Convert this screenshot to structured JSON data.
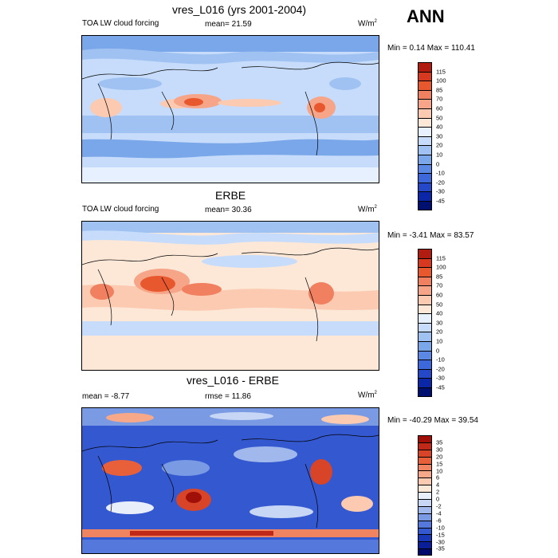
{
  "season": "ANN",
  "panels": [
    {
      "title": "vres_L016 (yrs 2001-2004)",
      "left_label": "TOA LW cloud forcing",
      "center_label": "mean=  21.59",
      "unit_base": "W/m",
      "unit_exp": "2",
      "minmax": "Min =   0.14 Max = 110.41",
      "ticks": [
        "115",
        "100",
        "85",
        "70",
        "60",
        "50",
        "40",
        "30",
        "20",
        "10",
        "0",
        "-10",
        "-20",
        "-30",
        "-45"
      ],
      "colors": [
        "#b01c10",
        "#d63820",
        "#e8582e",
        "#f08060",
        "#f6a588",
        "#fbcab0",
        "#fde8d8",
        "#e6f0ff",
        "#c6dcfa",
        "#a0c2f2",
        "#7aa6ea",
        "#5a88e4",
        "#3c68dc",
        "#2448c8",
        "#0c26a8",
        "#001070"
      ]
    },
    {
      "title": "ERBE",
      "left_label": "TOA LW cloud forcing",
      "center_label": "mean=  30.36",
      "unit_base": "W/m",
      "unit_exp": "2",
      "minmax": "Min =  -3.41 Max =  83.57",
      "ticks": [
        "115",
        "100",
        "85",
        "70",
        "60",
        "50",
        "40",
        "30",
        "20",
        "10",
        "0",
        "-10",
        "-20",
        "-30",
        "-45"
      ],
      "colors": [
        "#b01c10",
        "#d63820",
        "#e8582e",
        "#f08060",
        "#f6a588",
        "#fbcab0",
        "#fde8d8",
        "#e6f0ff",
        "#c6dcfa",
        "#a0c2f2",
        "#7aa6ea",
        "#5a88e4",
        "#3c68dc",
        "#2448c8",
        "#0c26a8",
        "#001070"
      ]
    },
    {
      "title": "vres_L016 - ERBE",
      "left_label": "mean =  -8.77",
      "center_label": "rmse =  11.86",
      "unit_base": "W/m",
      "unit_exp": "2",
      "minmax": "Min = -40.29 Max =  39.54",
      "ticks": [
        "35",
        "30",
        "20",
        "15",
        "10",
        "6",
        "4",
        "2",
        "0",
        "-2",
        "-4",
        "-6",
        "-10",
        "-15",
        "-30",
        "-35"
      ],
      "colors": [
        "#a01008",
        "#c02818",
        "#d84428",
        "#e8603a",
        "#f08460",
        "#f6a888",
        "#fbcab0",
        "#fde8d8",
        "#e8eefa",
        "#c6d6f4",
        "#a0b8ec",
        "#7a9ae4",
        "#5478dc",
        "#3458d0",
        "#1838b8",
        "#0a1e98",
        "#000a6c"
      ]
    }
  ]
}
